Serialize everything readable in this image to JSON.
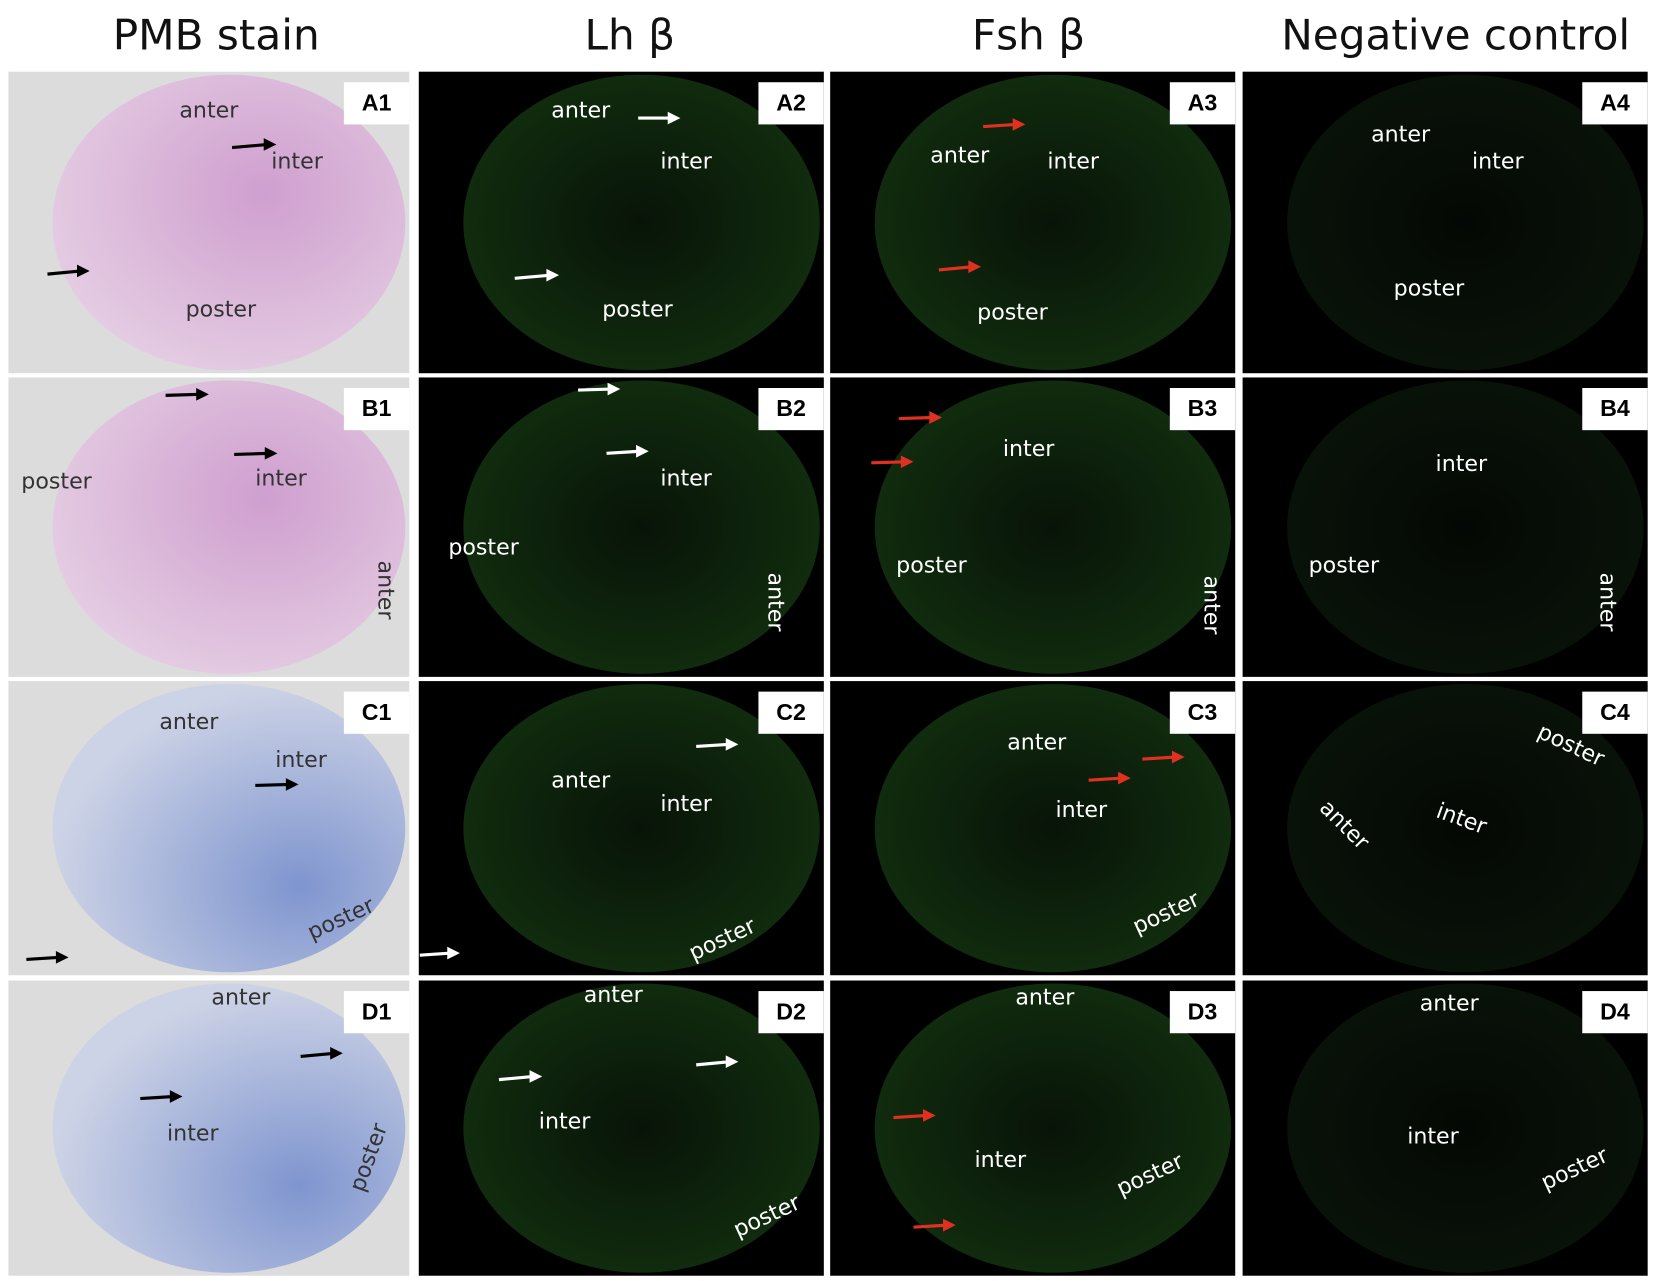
{
  "headers": [
    "PMB stain",
    "Lh β",
    "Fsh β",
    "Negative control"
  ],
  "panels": [
    {
      "label": "A1",
      "regions": [
        "anter",
        "inter",
        "poster"
      ]
    },
    {
      "label": "A2",
      "regions": [
        "anter",
        "inter",
        "poster"
      ]
    },
    {
      "label": "A3",
      "regions": [
        "anter",
        "inter",
        "poster"
      ]
    },
    {
      "label": "A4",
      "regions": [
        "anter",
        "inter",
        "poster"
      ]
    },
    {
      "label": "B1",
      "regions": [
        "poster",
        "inter",
        "anter"
      ]
    },
    {
      "label": "B2",
      "regions": [
        "poster",
        "inter",
        "anter"
      ]
    },
    {
      "label": "B3",
      "regions": [
        "inter",
        "poster",
        "anter"
      ]
    },
    {
      "label": "B4",
      "regions": [
        "inter",
        "poster",
        "anter"
      ]
    },
    {
      "label": "C1",
      "regions": [
        "anter",
        "inter",
        "poster"
      ]
    },
    {
      "label": "C2",
      "regions": [
        "anter",
        "inter",
        "poster"
      ]
    },
    {
      "label": "C3",
      "regions": [
        "anter",
        "inter",
        "poster"
      ]
    },
    {
      "label": "C4",
      "regions": [
        "poster",
        "anter",
        "inter"
      ]
    },
    {
      "label": "D1",
      "regions": [
        "anter",
        "inter",
        "poster"
      ]
    },
    {
      "label": "D2",
      "regions": [
        "anter",
        "inter",
        "poster"
      ]
    },
    {
      "label": "D3",
      "regions": [
        "anter",
        "inter",
        "poster"
      ]
    },
    {
      "label": "D4",
      "regions": [
        "anter",
        "inter",
        "poster"
      ]
    }
  ]
}
